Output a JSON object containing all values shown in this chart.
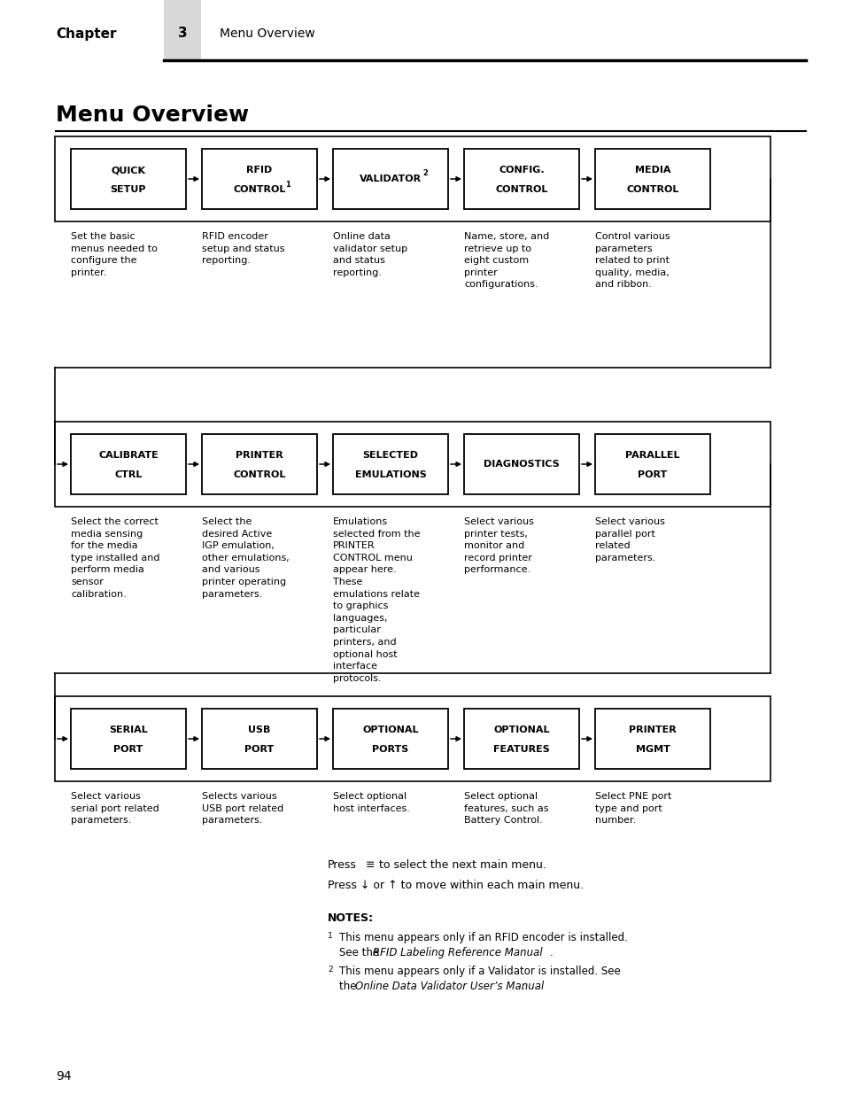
{
  "page_bg": "#ffffff",
  "header_bar_color": "#d8d8d8",
  "chapter_text": "Chapter",
  "chapter_num": "3",
  "chapter_title": "Menu Overview",
  "main_title": "Menu Overview",
  "row1_boxes": [
    {
      "line1": "QUICK",
      "line2": "SETUP",
      "superscript": ""
    },
    {
      "line1": "RFID",
      "line2": "CONTROL",
      "superscript": "1"
    },
    {
      "line1": "VALIDATOR",
      "line2": "",
      "superscript": "2"
    },
    {
      "line1": "CONFIG.",
      "line2": "CONTROL",
      "superscript": ""
    },
    {
      "line1": "MEDIA",
      "line2": "CONTROL",
      "superscript": ""
    }
  ],
  "row1_desc": [
    "Set the basic\nmenus needed to\nconfigure the\nprinter.",
    "RFID encoder\nsetup and status\nreporting.",
    "Online data\nvalidator setup\nand status\nreporting.",
    "Name, store, and\nretrieve up to\neight custom\nprinter\nconfigurations.",
    "Control various\nparameters\nrelated to print\nquality, media,\nand ribbon."
  ],
  "row2_boxes": [
    {
      "line1": "CALIBRATE",
      "line2": "CTRL",
      "superscript": ""
    },
    {
      "line1": "PRINTER",
      "line2": "CONTROL",
      "superscript": ""
    },
    {
      "line1": "SELECTED",
      "line2": "EMULATIONS",
      "superscript": ""
    },
    {
      "line1": "DIAGNOSTICS",
      "line2": "",
      "superscript": ""
    },
    {
      "line1": "PARALLEL",
      "line2": "PORT",
      "superscript": ""
    }
  ],
  "row2_desc": [
    "Select the correct\nmedia sensing\nfor the media\ntype installed and\nperform media\nsensor\ncalibration.",
    "Select the\ndesired Active\nIGP emulation,\nother emulations,\nand various\nprinter operating\nparameters.",
    "Emulations\nselected from the\nPRINTER\nCONTROL menu\nappear here.\nThese\nemulations relate\nto graphics\nlanguages,\nparticular\nprinters, and\noptional host\ninterface\nprotocols.",
    "Select various\nprinter tests,\nmonitor and\nrecord printer\nperformance.",
    "Select various\nparallel port\nrelated\nparameters."
  ],
  "row3_boxes": [
    {
      "line1": "SERIAL",
      "line2": "PORT",
      "superscript": ""
    },
    {
      "line1": "USB",
      "line2": "PORT",
      "superscript": ""
    },
    {
      "line1": "OPTIONAL",
      "line2": "PORTS",
      "superscript": ""
    },
    {
      "line1": "OPTIONAL",
      "line2": "FEATURES",
      "superscript": ""
    },
    {
      "line1": "PRINTER",
      "line2": "MGMT",
      "superscript": ""
    }
  ],
  "row3_desc": [
    "Select various\nserial port related\nparameters.",
    "Selects various\nUSB port related\nparameters.",
    "Select optional\nhost interfaces.",
    "Select optional\nfeatures, such as\nBattery Control.",
    "Select PNE port\ntype and port\nnumber."
  ],
  "notes_title": "NOTES:",
  "page_number": "94"
}
